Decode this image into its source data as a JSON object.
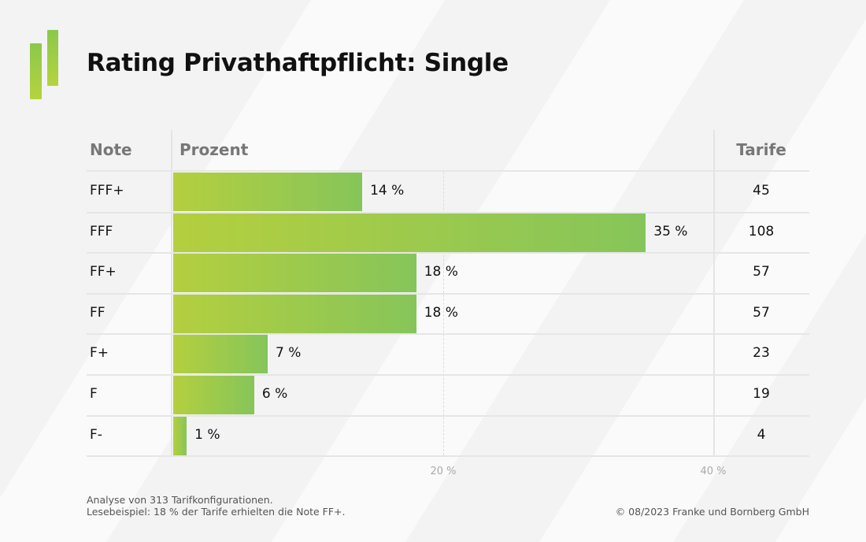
{
  "title": "Rating Privathaftpflicht: Single",
  "headers": {
    "note": "Note",
    "prozent": "Prozent",
    "tarife": "Tarife"
  },
  "colors": {
    "bar_start": "#b4cf3f",
    "bar_end": "#86c55a"
  },
  "chart_data": {
    "type": "bar",
    "orientation": "horizontal",
    "title": "Rating Privathaftpflicht: Single",
    "categories": [
      "FFF+",
      "FFF",
      "FF+",
      "FF",
      "F+",
      "F",
      "F-"
    ],
    "values": [
      14,
      35,
      18,
      18,
      7,
      6,
      1
    ],
    "value_labels": [
      "14 %",
      "35 %",
      "18 %",
      "18 %",
      "7 %",
      "6 %",
      "1 %"
    ],
    "tarife": [
      "45",
      "108",
      "57",
      "57",
      "23",
      "19",
      "4"
    ],
    "xlim": [
      0,
      40
    ],
    "xticks": [
      20,
      40
    ],
    "xtick_labels": [
      "20 %",
      "40 %"
    ],
    "xlabel": "Prozent",
    "ylabel": "Note"
  },
  "footer": {
    "line1": "Analyse von 313 Tarifkonfigurationen.",
    "line2": "Lesebeispiel: 18 % der Tarife erhielten die Note FF+.",
    "copyright": "© 08/2023 Franke und Bornberg GmbH"
  }
}
